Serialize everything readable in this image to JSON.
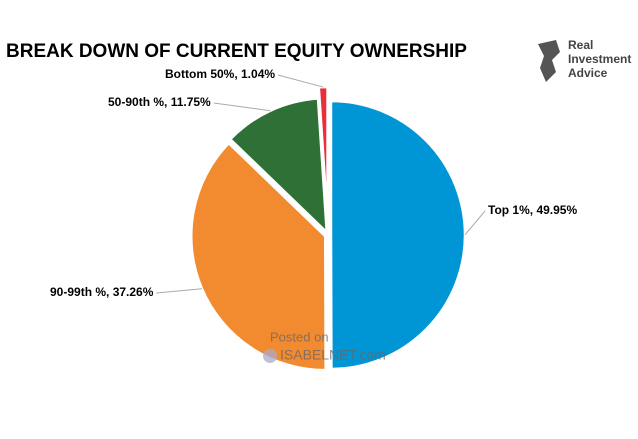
{
  "chart_data": {
    "type": "pie",
    "title": "BREAK DOWN OF CURRENT EQUITY OWNERSHIP",
    "values": [
      49.95,
      37.26,
      11.75,
      1.04
    ],
    "value_labels": [
      "Top 1%, 49.95%",
      "90-99th %, 37.26%",
      "50-90th %, 11.75%",
      "Bottom 50%, 1.04%"
    ],
    "colors": [
      "#0096d6",
      "#f28a30",
      "#2e7035",
      "#e8303a"
    ]
  },
  "logo": {
    "lines": [
      "Real",
      "Investment",
      "Advice"
    ]
  },
  "watermark": {
    "line1": "Posted on",
    "line2": "ISABELNET.com"
  }
}
